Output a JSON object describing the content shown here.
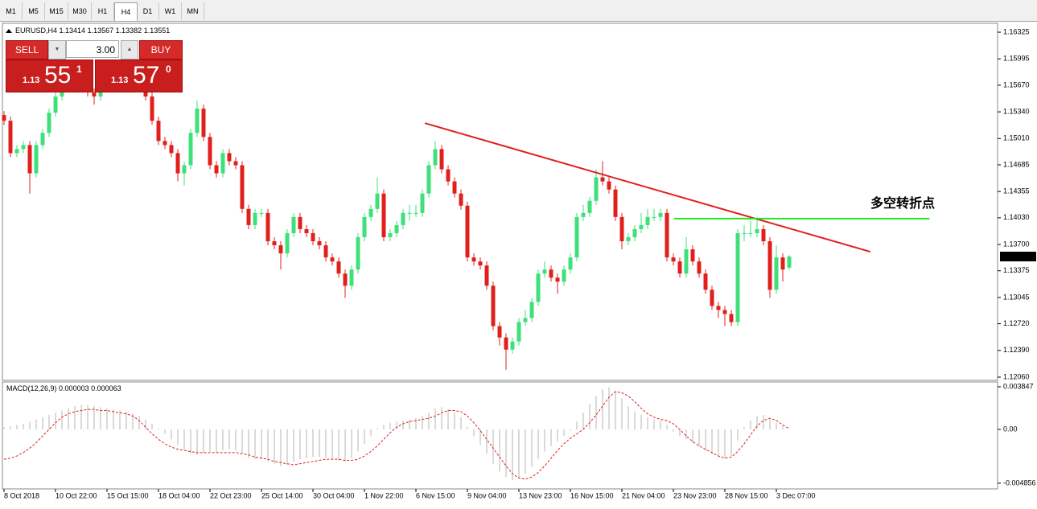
{
  "toolbar": {
    "tabs": [
      "M1",
      "M5",
      "M15",
      "M30",
      "H1",
      "H4",
      "D1",
      "W1",
      "MN"
    ],
    "active": "H4"
  },
  "trade_panel": {
    "sell": "SELL",
    "buy": "BUY",
    "lot": "3.00",
    "bid": [
      "1.13",
      "55",
      "1"
    ],
    "ask": [
      "1.13",
      "57",
      "0"
    ]
  },
  "chart_data": [
    {
      "type": "candlestick",
      "symbol": "EURUSD,H4",
      "up_color": "#3ee07a",
      "down_color": "#e0201c",
      "ylim": [
        1.1203,
        1.16425
      ],
      "yticks": [
        1.16325,
        1.15995,
        {
          "value": 1.1567,
          "label": "1.15670"
        },
        {
          "value": 1.1534,
          "label": "1.15340"
        },
        {
          "value": 1.1501,
          "label": "1.15010"
        },
        1.14685,
        1.14355,
        {
          "value": 1.1403,
          "label": "1.14030"
        },
        {
          "value": 1.137,
          "label": "1.13700"
        },
        1.13375,
        1.13045,
        {
          "value": 1.1272,
          "label": "1.12720"
        },
        {
          "value": 1.1239,
          "label": "1.12390"
        },
        {
          "value": 1.1206,
          "label": "1.12060"
        }
      ],
      "categories": [
        "8 Oct 2018",
        null,
        null,
        null,
        null,
        null,
        null,
        null,
        "10 Oct 22:00",
        null,
        null,
        null,
        null,
        null,
        null,
        null,
        "15 Oct 15:00",
        null,
        null,
        null,
        null,
        null,
        null,
        null,
        "18 Oct 04:00",
        null,
        null,
        null,
        null,
        null,
        null,
        null,
        "22 Oct 23:00",
        null,
        null,
        null,
        null,
        null,
        null,
        null,
        "25 Oct 14:00",
        null,
        null,
        null,
        null,
        null,
        null,
        null,
        "30 Oct 04:00",
        null,
        null,
        null,
        null,
        null,
        null,
        null,
        "1 Nov 22:00",
        null,
        null,
        null,
        null,
        null,
        null,
        null,
        "6 Nov 15:00",
        null,
        null,
        null,
        null,
        null,
        null,
        null,
        "9 Nov 04:00",
        null,
        null,
        null,
        null,
        null,
        null,
        null,
        "13 Nov 23:00",
        null,
        null,
        null,
        null,
        null,
        null,
        null,
        "16 Nov 15:00",
        null,
        null,
        null,
        null,
        null,
        null,
        null,
        "21 Nov 04:00",
        null,
        null,
        null,
        null,
        null,
        null,
        null,
        "23 Nov 23:00",
        null,
        null,
        null,
        null,
        null,
        null,
        null,
        "28 Nov 15:00",
        null,
        null,
        null,
        null,
        null,
        null,
        null,
        "3 Dec 07:00",
        null,
        null
      ],
      "ohlc": [
        [
          1.153,
          1.1535,
          1.1518,
          1.1523
        ],
        [
          1.1523,
          1.1528,
          1.1478,
          1.1483
        ],
        [
          1.1483,
          1.1493,
          1.1478,
          1.1488
        ],
        [
          1.1488,
          1.1498,
          1.1483,
          1.1493
        ],
        [
          1.1493,
          1.1498,
          1.1433,
          1.1458
        ],
        [
          1.1458,
          1.1498,
          1.1453,
          1.1493
        ],
        [
          1.1493,
          1.1513,
          1.1488,
          1.1508
        ],
        [
          1.1508,
          1.1538,
          1.1503,
          1.1533
        ],
        [
          1.1533,
          1.1558,
          1.1528,
          1.1553
        ],
        [
          1.1553,
          1.1568,
          1.1548,
          1.1563
        ],
        [
          1.1563,
          1.1578,
          1.1558,
          1.1573
        ],
        [
          1.1573,
          1.1578,
          1.1563,
          1.1568
        ],
        [
          1.1568,
          1.1578,
          1.1563,
          1.1573
        ],
        [
          1.1573,
          1.1578,
          1.1553,
          1.1558
        ],
        [
          1.1558,
          1.1563,
          1.1543,
          1.1553
        ],
        [
          1.1553,
          1.1568,
          1.1548,
          1.1563
        ],
        [
          1.1563,
          1.1578,
          1.1558,
          1.1573
        ],
        [
          1.1573,
          1.1583,
          1.1568,
          1.1578
        ],
        [
          1.1578,
          1.1588,
          1.1573,
          1.1583
        ],
        [
          1.1583,
          1.1588,
          1.1573,
          1.1578
        ],
        [
          1.1578,
          1.1583,
          1.1568,
          1.1573
        ],
        [
          1.1573,
          1.1578,
          1.1563,
          1.1568
        ],
        [
          1.1568,
          1.1573,
          1.1548,
          1.1553
        ],
        [
          1.1553,
          1.1558,
          1.1518,
          1.1523
        ],
        [
          1.1523,
          1.1528,
          1.1493,
          1.1498
        ],
        [
          1.1498,
          1.1503,
          1.1488,
          1.1493
        ],
        [
          1.1493,
          1.1498,
          1.1478,
          1.1483
        ],
        [
          1.1483,
          1.1488,
          1.1448,
          1.1458
        ],
        [
          1.1458,
          1.1473,
          1.1443,
          1.1468
        ],
        [
          1.1468,
          1.1513,
          1.1463,
          1.1508
        ],
        [
          1.1508,
          1.1548,
          1.1503,
          1.1538
        ],
        [
          1.1538,
          1.1543,
          1.1498,
          1.1503
        ],
        [
          1.1503,
          1.1508,
          1.1463,
          1.1468
        ],
        [
          1.1468,
          1.1473,
          1.1453,
          1.1458
        ],
        [
          1.1458,
          1.1488,
          1.1453,
          1.1483
        ],
        [
          1.1483,
          1.1488,
          1.1468,
          1.1473
        ],
        [
          1.1473,
          1.1478,
          1.1463,
          1.1468
        ],
        [
          1.1468,
          1.1473,
          1.1409,
          1.1414
        ],
        [
          1.1414,
          1.1419,
          1.1389,
          1.1394
        ],
        [
          1.1394,
          1.1414,
          1.1389,
          1.1409
        ],
        [
          1.1409,
          1.1414,
          1.1404,
          1.1409
        ],
        [
          1.1409,
          1.1414,
          1.1369,
          1.1374
        ],
        [
          1.1374,
          1.1379,
          1.1364,
          1.1369
        ],
        [
          1.1369,
          1.1374,
          1.1339,
          1.1359
        ],
        [
          1.1359,
          1.1389,
          1.1354,
          1.1384
        ],
        [
          1.1384,
          1.1409,
          1.1379,
          1.1404
        ],
        [
          1.1404,
          1.1409,
          1.1384,
          1.1389
        ],
        [
          1.1389,
          1.1394,
          1.1379,
          1.1384
        ],
        [
          1.1384,
          1.1389,
          1.1369,
          1.1374
        ],
        [
          1.1374,
          1.1379,
          1.1364,
          1.1369
        ],
        [
          1.1369,
          1.1374,
          1.1349,
          1.1354
        ],
        [
          1.1354,
          1.1359,
          1.1344,
          1.1349
        ],
        [
          1.1349,
          1.1354,
          1.1329,
          1.1334
        ],
        [
          1.1334,
          1.1339,
          1.1304,
          1.1319
        ],
        [
          1.1319,
          1.1344,
          1.1314,
          1.1339
        ],
        [
          1.1339,
          1.1384,
          1.1334,
          1.1379
        ],
        [
          1.1379,
          1.1409,
          1.1374,
          1.1404
        ],
        [
          1.1404,
          1.1419,
          1.1399,
          1.1414
        ],
        [
          1.1414,
          1.1453,
          1.1409,
          1.1433
        ],
        [
          1.1433,
          1.1438,
          1.1374,
          1.1379
        ],
        [
          1.1379,
          1.1389,
          1.1374,
          1.1384
        ],
        [
          1.1384,
          1.1399,
          1.1379,
          1.1394
        ],
        [
          1.1394,
          1.1414,
          1.1389,
          1.1409
        ],
        [
          1.1409,
          1.1419,
          1.1399,
          1.1409
        ],
        [
          1.1409,
          1.1419,
          1.1404,
          1.1409
        ],
        [
          1.1409,
          1.1438,
          1.1404,
          1.1433
        ],
        [
          1.1433,
          1.1473,
          1.1428,
          1.1468
        ],
        [
          1.1468,
          1.1498,
          1.1463,
          1.1488
        ],
        [
          1.1488,
          1.1493,
          1.1458,
          1.1463
        ],
        [
          1.1463,
          1.1468,
          1.1443,
          1.1448
        ],
        [
          1.1448,
          1.1453,
          1.1428,
          1.1433
        ],
        [
          1.1433,
          1.1438,
          1.1413,
          1.1418
        ],
        [
          1.1418,
          1.1423,
          1.1349,
          1.1354
        ],
        [
          1.1354,
          1.1359,
          1.1344,
          1.1349
        ],
        [
          1.1349,
          1.1354,
          1.1339,
          1.1344
        ],
        [
          1.1344,
          1.1349,
          1.1314,
          1.1319
        ],
        [
          1.1319,
          1.1324,
          1.1264,
          1.1269
        ],
        [
          1.1269,
          1.1274,
          1.1245,
          1.1255
        ],
        [
          1.1255,
          1.126,
          1.1215,
          1.124
        ],
        [
          1.124,
          1.1255,
          1.1235,
          1.125
        ],
        [
          1.125,
          1.1279,
          1.1245,
          1.1274
        ],
        [
          1.1274,
          1.1289,
          1.1269,
          1.1279
        ],
        [
          1.1279,
          1.1304,
          1.1274,
          1.1299
        ],
        [
          1.1299,
          1.1339,
          1.1294,
          1.1334
        ],
        [
          1.1334,
          1.1349,
          1.1329,
          1.1339
        ],
        [
          1.1339,
          1.1344,
          1.1324,
          1.1329
        ],
        [
          1.1329,
          1.1334,
          1.1309,
          1.1324
        ],
        [
          1.1324,
          1.1344,
          1.1319,
          1.1339
        ],
        [
          1.1339,
          1.1359,
          1.1334,
          1.1354
        ],
        [
          1.1354,
          1.1409,
          1.1349,
          1.1404
        ],
        [
          1.1404,
          1.1419,
          1.1399,
          1.1409
        ],
        [
          1.1409,
          1.1429,
          1.1404,
          1.1424
        ],
        [
          1.1424,
          1.1463,
          1.1419,
          1.1453
        ],
        [
          1.1453,
          1.1473,
          1.1443,
          1.1448
        ],
        [
          1.1448,
          1.1453,
          1.1433,
          1.1438
        ],
        [
          1.1438,
          1.1443,
          1.1399,
          1.1404
        ],
        [
          1.1404,
          1.1409,
          1.1364,
          1.1374
        ],
        [
          1.1374,
          1.1384,
          1.1369,
          1.1379
        ],
        [
          1.1379,
          1.1394,
          1.1374,
          1.1389
        ],
        [
          1.1389,
          1.1409,
          1.1384,
          1.1394
        ],
        [
          1.1394,
          1.1414,
          1.1389,
          1.1404
        ],
        [
          1.1404,
          1.1414,
          1.1399,
          1.1404
        ],
        [
          1.1404,
          1.1414,
          1.1399,
          1.1409
        ],
        [
          1.1409,
          1.1414,
          1.1349,
          1.1354
        ],
        [
          1.1354,
          1.1359,
          1.1344,
          1.1349
        ],
        [
          1.1349,
          1.1354,
          1.1329,
          1.1334
        ],
        [
          1.1334,
          1.1379,
          1.1329,
          1.1364
        ],
        [
          1.1364,
          1.1369,
          1.1344,
          1.1349
        ],
        [
          1.1349,
          1.1354,
          1.1329,
          1.1334
        ],
        [
          1.1334,
          1.1339,
          1.1309,
          1.1314
        ],
        [
          1.1314,
          1.1319,
          1.1289,
          1.1294
        ],
        [
          1.1294,
          1.1299,
          1.1279,
          1.1289
        ],
        [
          1.1289,
          1.1294,
          1.1269,
          1.1284
        ],
        [
          1.1284,
          1.1289,
          1.1269,
          1.1274
        ],
        [
          1.1274,
          1.1389,
          1.1269,
          1.1384
        ],
        [
          1.1384,
          1.1394,
          1.1374,
          1.1384
        ],
        [
          1.1384,
          1.1399,
          1.1379,
          1.1384
        ],
        [
          1.1384,
          1.1404,
          1.1379,
          1.1389
        ],
        [
          1.1389,
          1.1394,
          1.1369,
          1.1374
        ],
        [
          1.1374,
          1.1379,
          1.1304,
          1.1314
        ],
        [
          1.1314,
          1.1369,
          1.1309,
          1.1354
        ],
        [
          1.1354,
          1.1359,
          1.1324,
          1.1339
        ],
        [
          1.13414,
          1.13567,
          1.13382,
          1.13551
        ]
      ],
      "trendline": {
        "color": "#e0201c",
        "x": [
          65.4,
          134.6
        ],
        "y": [
          1.152,
          1.1361
        ]
      },
      "level": {
        "color": "#22e822",
        "x": [
          104.1,
          143.8
        ],
        "y": 1.1402
      },
      "annotation": {
        "text": "多空转折点",
        "color": "#22e822"
      }
    },
    {
      "type": "macd",
      "title": "MACD(12,26,9)",
      "histogram_color": "#b4b4b4",
      "signal_color": "#e0201c",
      "ylim": [
        -0.0053,
        0.00428
      ],
      "yticks": [
        0.003847,
        {
          "value": 0,
          "label": "0.00"
        },
        -0.004856
      ],
      "histogram": [
        0.0002,
        0.0003,
        0.0004,
        0.0005,
        0.0007,
        0.0009,
        0.0011,
        0.0013,
        0.0015,
        0.0017,
        0.0019,
        0.0021,
        0.0022,
        0.0022,
        0.0021,
        0.002,
        0.0019,
        0.0018,
        0.0017,
        0.0016,
        0.0014,
        0.0012,
        0.0009,
        0.0005,
        0.0001,
        -0.0004,
        -0.0009,
        -0.0014,
        -0.0018,
        -0.0022,
        -0.0023,
        -0.0021,
        -0.002,
        -0.0021,
        -0.0019,
        -0.0018,
        -0.0019,
        -0.0022,
        -0.0026,
        -0.0027,
        -0.0027,
        -0.0029,
        -0.0031,
        -0.0033,
        -0.0032,
        -0.0029,
        -0.0027,
        -0.0026,
        -0.0025,
        -0.0025,
        -0.0026,
        -0.0027,
        -0.0028,
        -0.0029,
        -0.0026,
        -0.002,
        -0.0013,
        -0.0006,
        0.0001,
        0.0004,
        0.0006,
        0.0007,
        0.0008,
        0.0009,
        0.001,
        0.0012,
        0.0015,
        0.0019,
        0.002,
        0.0018,
        0.0015,
        0.0011,
        0.0002,
        -0.0006,
        -0.0014,
        -0.0022,
        -0.0031,
        -0.0038,
        -0.0043,
        -0.0046,
        -0.0044,
        -0.004,
        -0.0034,
        -0.0027,
        -0.002,
        -0.0015,
        -0.0011,
        -0.0006,
        -0.0001,
        0.0007,
        0.0015,
        0.0023,
        0.003,
        0.0036,
        0.0038,
        0.0035,
        0.0028,
        0.0021,
        0.0016,
        0.0013,
        0.0011,
        0.0009,
        0.0008,
        0.0004,
        -0.0002,
        -0.0006,
        -0.0009,
        -0.0012,
        -0.0015,
        -0.0019,
        -0.0022,
        -0.0025,
        -0.0026,
        -0.0024,
        -0.001,
        0.0002,
        0.0008,
        0.0012,
        0.0013,
        0.0009,
        0.0006,
        0.0004,
        3e-06
      ],
      "signal": [
        -0.0027,
        -0.0026,
        -0.0024,
        -0.0021,
        -0.0017,
        -0.0012,
        -0.0006,
        0.0,
        0.0006,
        0.0011,
        0.0014,
        0.0016,
        0.0017,
        0.0018,
        0.0018,
        0.0017,
        0.0017,
        0.0016,
        0.0015,
        0.0014,
        0.0012,
        0.0008,
        0.0002,
        -0.0004,
        -0.0009,
        -0.0013,
        -0.0016,
        -0.0018,
        -0.0019,
        -0.002,
        -0.0021,
        -0.0021,
        -0.0021,
        -0.0021,
        -0.0021,
        -0.0021,
        -0.0021,
        -0.0022,
        -0.0023,
        -0.0025,
        -0.0026,
        -0.0027,
        -0.0029,
        -0.003,
        -0.0031,
        -0.0032,
        -0.0031,
        -0.003,
        -0.0029,
        -0.0028,
        -0.0027,
        -0.0027,
        -0.0027,
        -0.0028,
        -0.0028,
        -0.0027,
        -0.0024,
        -0.002,
        -0.0015,
        -0.0009,
        -0.0003,
        0.0002,
        0.0005,
        0.0007,
        0.0008,
        0.0009,
        0.001,
        0.0012,
        0.0015,
        0.0017,
        0.0017,
        0.0016,
        0.0012,
        0.0006,
        -0.0001,
        -0.0009,
        -0.0017,
        -0.0025,
        -0.0033,
        -0.004,
        -0.0044,
        -0.0045,
        -0.0043,
        -0.0039,
        -0.0033,
        -0.0026,
        -0.0019,
        -0.0013,
        -0.0008,
        -0.0004,
        0.0,
        0.0006,
        0.0013,
        0.0021,
        0.0029,
        0.0034,
        0.0033,
        0.003,
        0.0025,
        0.0019,
        0.0014,
        0.0011,
        0.0009,
        0.0008,
        0.0005,
        0.0,
        -0.0006,
        -0.0011,
        -0.0015,
        -0.0018,
        -0.0021,
        -0.0024,
        -0.0026,
        -0.0025,
        -0.002,
        -0.0013,
        -0.0005,
        0.0003,
        0.0008,
        0.001,
        0.0008,
        0.0004,
        6.3e-05
      ]
    }
  ]
}
